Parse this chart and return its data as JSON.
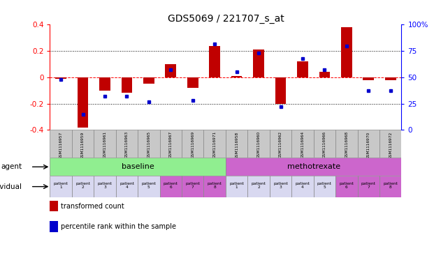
{
  "title": "GDS5069 / 221707_s_at",
  "sample_ids": [
    "GSM1116957",
    "GSM1116959",
    "GSM1116961",
    "GSM1116963",
    "GSM1116965",
    "GSM1116967",
    "GSM1116969",
    "GSM1116971",
    "GSM1116958",
    "GSM1116960",
    "GSM1116962",
    "GSM1116964",
    "GSM1116966",
    "GSM1116968",
    "GSM1116970",
    "GSM1116972"
  ],
  "transformed_count": [
    -0.01,
    -0.38,
    -0.1,
    -0.12,
    -0.05,
    0.1,
    -0.08,
    0.24,
    0.01,
    0.21,
    -0.2,
    0.12,
    0.04,
    0.38,
    -0.02,
    -0.02
  ],
  "percentile_rank": [
    48,
    15,
    32,
    32,
    27,
    57,
    28,
    82,
    55,
    73,
    22,
    68,
    57,
    80,
    37,
    37
  ],
  "agents": [
    {
      "label": "baseline",
      "start": 0,
      "end": 8,
      "color": "#90EE90"
    },
    {
      "label": "methotrexate",
      "start": 8,
      "end": 16,
      "color": "#CC66CC"
    }
  ],
  "patient_labels": [
    "patient\n1",
    "patient\n2",
    "patient\n3",
    "patient\n4",
    "patient\n5",
    "patient\n6",
    "patient\n7",
    "patient\n8",
    "patient\n1",
    "patient\n2",
    "patient\n3",
    "patient\n4",
    "patient\n5",
    "patient\n6",
    "patient\n7",
    "patient\n8"
  ],
  "patient_colors": [
    "#D8D8F0",
    "#D8D8F0",
    "#D8D8F0",
    "#D8D8F0",
    "#D8D8F0",
    "#CC66CC",
    "#CC66CC",
    "#CC66CC",
    "#D8D8F0",
    "#D8D8F0",
    "#D8D8F0",
    "#D8D8F0",
    "#D8D8F0",
    "#CC66CC",
    "#CC66CC",
    "#CC66CC"
  ],
  "bar_color": "#C00000",
  "dot_color": "#0000CC",
  "left_ylim": [
    -0.4,
    0.4
  ],
  "right_ylim": [
    0,
    100
  ],
  "right_yticks": [
    0,
    25,
    50,
    75,
    100
  ],
  "right_yticklabels": [
    "0",
    "25",
    "50",
    "75",
    "100%"
  ],
  "left_yticks": [
    -0.4,
    -0.2,
    0.0,
    0.2,
    0.4
  ],
  "dotted_lines": [
    -0.2,
    0.0,
    0.2
  ],
  "legend_items": [
    {
      "label": "transformed count",
      "color": "#C00000"
    },
    {
      "label": "percentile rank within the sample",
      "color": "#0000CC"
    }
  ],
  "gsm_bg_color": "#C8C8C8",
  "title_fontsize": 10,
  "bar_width": 0.5
}
